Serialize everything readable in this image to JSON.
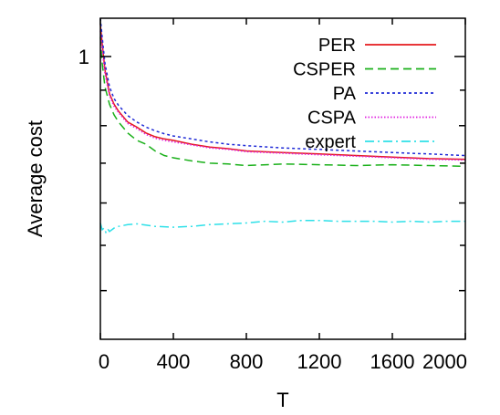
{
  "chart_data": {
    "type": "line",
    "title": "",
    "xlabel": "T",
    "ylabel": "Average cost",
    "xlim": [
      0,
      2000
    ],
    "ylim": [
      0.65,
      1.06
    ],
    "y_scale": "log",
    "grid": false,
    "legend_position": "top-right",
    "x_ticks": [
      0,
      400,
      800,
      1200,
      1600,
      2000
    ],
    "x_tick_labels": [
      "0",
      "400",
      "800",
      "1200",
      "1600",
      "2000"
    ],
    "y_tick_labels": [
      {
        "value": 1.0,
        "label": "1"
      }
    ],
    "series": [
      {
        "name": "PER",
        "color": "#e41a1c",
        "dash": "solid",
        "x": [
          0,
          10,
          25,
          50,
          75,
          100,
          150,
          200,
          250,
          300,
          350,
          400,
          500,
          600,
          700,
          800,
          1000,
          1200,
          1400,
          1600,
          1800,
          2000
        ],
        "y": [
          1.05,
          1.02,
          0.98,
          0.945,
          0.93,
          0.92,
          0.905,
          0.898,
          0.89,
          0.885,
          0.882,
          0.88,
          0.875,
          0.871,
          0.869,
          0.866,
          0.864,
          0.862,
          0.86,
          0.858,
          0.856,
          0.855
        ]
      },
      {
        "name": "CSPER",
        "color": "#1ab01a",
        "dash": "dashed",
        "x": [
          0,
          10,
          25,
          50,
          75,
          100,
          150,
          200,
          250,
          300,
          350,
          400,
          500,
          600,
          700,
          800,
          1000,
          1200,
          1400,
          1600,
          1800,
          2000
        ],
        "y": [
          1.03,
          0.99,
          0.955,
          0.93,
          0.915,
          0.905,
          0.89,
          0.88,
          0.875,
          0.866,
          0.86,
          0.857,
          0.853,
          0.85,
          0.849,
          0.847,
          0.849,
          0.848,
          0.847,
          0.848,
          0.847,
          0.846
        ]
      },
      {
        "name": "PA",
        "color": "#1f2ad6",
        "dash": "dotted",
        "x": [
          0,
          10,
          25,
          50,
          75,
          100,
          150,
          200,
          250,
          300,
          350,
          400,
          500,
          600,
          700,
          800,
          1000,
          1200,
          1400,
          1600,
          1800,
          2000
        ],
        "y": [
          1.06,
          1.03,
          0.99,
          0.955,
          0.938,
          0.928,
          0.914,
          0.905,
          0.898,
          0.893,
          0.889,
          0.886,
          0.882,
          0.878,
          0.875,
          0.873,
          0.87,
          0.868,
          0.866,
          0.864,
          0.862,
          0.86
        ]
      },
      {
        "name": "CSPA",
        "color": "#e020e0",
        "dash": "dotted-fine",
        "x": [
          0,
          10,
          25,
          50,
          75,
          100,
          150,
          200,
          250,
          300,
          350,
          400,
          500,
          600,
          700,
          800,
          1000,
          1200,
          1400,
          1600,
          1800,
          2000
        ],
        "y": [
          1.04,
          1.01,
          0.975,
          0.942,
          0.927,
          0.918,
          0.903,
          0.896,
          0.888,
          0.883,
          0.88,
          0.878,
          0.874,
          0.87,
          0.868,
          0.865,
          0.863,
          0.861,
          0.859,
          0.857,
          0.855,
          0.854
        ]
      },
      {
        "name": "expert",
        "color": "#2ee0e8",
        "dash": "dash-dot",
        "x": [
          0,
          10,
          20,
          30,
          40,
          50,
          75,
          100,
          150,
          200,
          300,
          400,
          500,
          600,
          700,
          800,
          900,
          1000,
          1100,
          1200,
          1300,
          1400,
          1500,
          1600,
          1700,
          1800,
          1900,
          2000
        ],
        "y": [
          0.776,
          0.768,
          0.77,
          0.765,
          0.769,
          0.766,
          0.77,
          0.772,
          0.774,
          0.775,
          0.772,
          0.771,
          0.772,
          0.774,
          0.775,
          0.776,
          0.778,
          0.777,
          0.779,
          0.779,
          0.778,
          0.778,
          0.778,
          0.777,
          0.778,
          0.777,
          0.778,
          0.778
        ]
      }
    ]
  }
}
